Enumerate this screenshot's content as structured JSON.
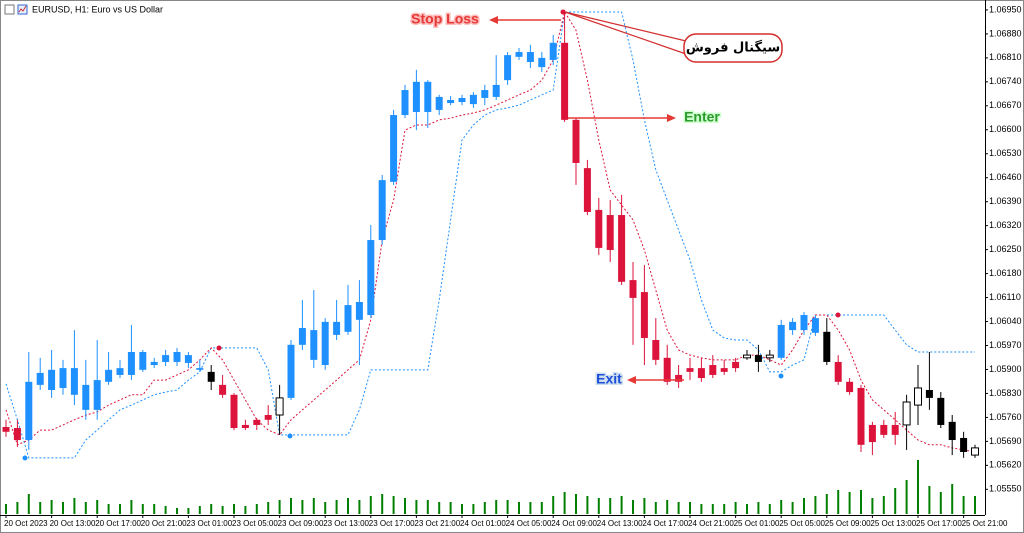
{
  "chart_data": {
    "type": "candlestick",
    "title": "EURUSD, H1: Euro vs US Dollar",
    "categories": [
      "20 Oct 2023",
      null,
      null,
      null,
      "20 Oct 13:00",
      null,
      null,
      null,
      "20 Oct 17:00",
      null,
      null,
      null,
      "20 Oct 21:00",
      null,
      null,
      null,
      "23 Oct 01:00",
      null,
      null,
      null,
      "23 Oct 05:00",
      null,
      null,
      null,
      "23 Oct 09:00",
      null,
      null,
      null,
      "23 Oct 13:00",
      null,
      null,
      null,
      "23 Oct 17:00",
      null,
      null,
      null,
      "23 Oct 21:00",
      null,
      null,
      null,
      "24 Oct 01:00",
      null,
      null,
      null,
      "24 Oct 05:00",
      null,
      null,
      null,
      "24 Oct 09:00",
      null,
      null,
      null,
      "24 Oct 13:00",
      null,
      null,
      null,
      "24 Oct 17:00",
      null,
      null,
      null,
      "24 Oct 21:00",
      null,
      null,
      null,
      "25 Oct 01:00",
      null,
      null,
      null,
      "25 Oct 05:00",
      null,
      null,
      null,
      "25 Oct 09:00",
      null,
      null,
      null,
      "25 Oct 13:00",
      null,
      null,
      null,
      "25 Oct 17:00",
      null,
      null,
      null,
      "25 Oct 21:00",
      null
    ],
    "open": [
      1.05732,
      1.05729,
      1.05694,
      1.05855,
      1.0584,
      1.05846,
      1.05826,
      1.05782,
      1.05782,
      1.05864,
      1.05884,
      1.05884,
      1.05899,
      1.05913,
      1.05922,
      1.05922,
      1.05919,
      1.05899,
      1.05893,
      1.05855,
      1.05826,
      1.05738,
      1.05753,
      1.05767,
      1.05767,
      1.05817,
      1.05972,
      1.05928,
      1.05913,
      1.06001,
      1.0601,
      1.06045,
      1.06059,
      1.06278,
      1.06448,
      1.06643,
      1.06652,
      1.06652,
      1.06658,
      1.06678,
      1.06681,
      1.06675,
      1.06693,
      1.06696,
      1.06745,
      1.06813,
      1.06798,
      1.06783,
      1.06804,
      1.06854,
      1.06629,
      1.06488,
      1.06366,
      1.06351,
      1.06351,
      1.06161,
      1.06126,
      1.05986,
      1.05934,
      1.05884,
      1.05904,
      1.05904,
      1.05913,
      1.05904,
      1.05922,
      1.05934,
      1.05942,
      1.05934,
      1.05934,
      1.06015,
      1.06015,
      1.06007,
      1.0601,
      1.05922,
      1.05864,
      1.05846,
      1.05738,
      1.05738,
      1.05738,
      1.05738,
      1.05796,
      1.0584,
      1.05817,
      1.05747,
      1.057,
      1.0565
    ],
    "high": [
      1.05753,
      1.05753,
      1.05951,
      1.05934,
      1.05957,
      1.05928,
      1.06015,
      1.05928,
      1.05986,
      1.05951,
      1.05928,
      1.0603,
      1.05957,
      1.05934,
      1.05957,
      1.05963,
      1.05951,
      1.05928,
      1.05913,
      1.05884,
      1.05831,
      1.05753,
      1.05758,
      1.05796,
      1.05855,
      1.05986,
      1.06103,
      1.06132,
      1.0605,
      1.06103,
      1.06147,
      1.06161,
      1.06322,
      1.06468,
      1.06658,
      1.06731,
      1.06775,
      1.06745,
      1.06702,
      1.06699,
      1.06702,
      1.0671,
      1.06731,
      1.06818,
      1.06827,
      1.06839,
      1.06848,
      1.06827,
      1.06877,
      1.0695,
      1.06634,
      1.06512,
      1.06401,
      1.06395,
      1.0641,
      1.06214,
      1.06205,
      1.0605,
      1.05972,
      1.05913,
      1.05934,
      1.05934,
      1.05942,
      1.05928,
      1.05934,
      1.05957,
      1.05972,
      1.05957,
      1.06045,
      1.0605,
      1.06068,
      1.06059,
      1.0605,
      1.05942,
      1.05875,
      1.05855,
      1.05747,
      1.05753,
      1.05776,
      1.05826,
      1.05913,
      1.05951,
      1.05834,
      1.05767,
      1.05718,
      1.0568
    ],
    "low": [
      1.05703,
      1.05674,
      1.05665,
      1.0584,
      1.05817,
      1.05826,
      1.05796,
      1.05753,
      1.05753,
      1.05855,
      1.05875,
      1.05869,
      1.05893,
      1.05904,
      1.0591,
      1.0591,
      1.05904,
      1.05893,
      1.0584,
      1.05817,
      1.05723,
      1.05723,
      1.05723,
      1.05738,
      1.05709,
      1.05811,
      1.05957,
      1.05904,
      1.05899,
      1.05986,
      1.06001,
      1.05913,
      1.0605,
      1.06264,
      1.06439,
      1.06634,
      1.06599,
      1.06605,
      1.06643,
      1.06672,
      1.06672,
      1.06664,
      1.06672,
      1.06687,
      1.06731,
      1.06804,
      1.0678,
      1.06769,
      1.06789,
      1.06623,
      1.06439,
      1.06351,
      1.06234,
      1.06214,
      1.06147,
      1.05972,
      1.05913,
      1.05913,
      1.05855,
      1.05846,
      1.05869,
      1.05864,
      1.05875,
      1.05884,
      1.05893,
      1.05928,
      1.05893,
      1.05922,
      1.05928,
      1.06001,
      1.06001,
      1.05998,
      1.05913,
      1.05855,
      1.05826,
      1.05659,
      1.0565,
      1.057,
      1.0568,
      1.05665,
      1.05738,
      1.05782,
      1.05729,
      1.0565,
      1.05642,
      1.05642
    ],
    "close": [
      1.05718,
      1.05694,
      1.05864,
      1.0589,
      1.05899,
      1.05904,
      1.05904,
      1.05855,
      1.05869,
      1.05899,
      1.05904,
      1.05951,
      1.05951,
      1.05922,
      1.05942,
      1.05951,
      1.05942,
      1.05904,
      1.05864,
      1.05826,
      1.05729,
      1.05729,
      1.05738,
      1.05753,
      1.05817,
      1.05972,
      1.06021,
      1.06015,
      1.06039,
      1.06039,
      1.06088,
      1.06097,
      1.06278,
      1.06453,
      1.06643,
      1.06716,
      1.0674,
      1.0674,
      1.06696,
      1.06687,
      1.06693,
      1.06702,
      1.06716,
      1.06731,
      1.06818,
      1.06827,
      1.06827,
      1.0681,
      1.06854,
      1.06629,
      1.06503,
      1.0636,
      1.06255,
      1.06249,
      1.06156,
      1.06109,
      1.05992,
      1.05928,
      1.05864,
      1.05864,
      1.05893,
      1.05875,
      1.05884,
      1.05893,
      1.05904,
      1.05942,
      1.05922,
      1.05942,
      1.0603,
      1.06039,
      1.06059,
      1.0605,
      1.05922,
      1.05864,
      1.05834,
      1.0568,
      1.05688,
      1.05709,
      1.05709,
      1.05805,
      1.05846,
      1.05817,
      1.05738,
      1.05694,
      1.05659,
      1.05671
    ],
    "colors": [
      "#dc143c",
      "#dc143c",
      "#1e90ff",
      "#1e90ff",
      "#1e90ff",
      "#1e90ff",
      "#1e90ff",
      "#1e90ff",
      "#1e90ff",
      "#1e90ff",
      "#1e90ff",
      "#1e90ff",
      "#1e90ff",
      "#1e90ff",
      "#1e90ff",
      "#1e90ff",
      "#1e90ff",
      "#1e90ff",
      "#000000",
      "#dc143c",
      "#dc143c",
      "#dc143c",
      "#dc143c",
      "#dc143c",
      "#ffffff",
      "#1e90ff",
      "#1e90ff",
      "#1e90ff",
      "#1e90ff",
      "#1e90ff",
      "#1e90ff",
      "#1e90ff",
      "#1e90ff",
      "#1e90ff",
      "#1e90ff",
      "#1e90ff",
      "#1e90ff",
      "#1e90ff",
      "#1e90ff",
      "#1e90ff",
      "#1e90ff",
      "#1e90ff",
      "#1e90ff",
      "#1e90ff",
      "#1e90ff",
      "#1e90ff",
      "#1e90ff",
      "#1e90ff",
      "#1e90ff",
      "#dc143c",
      "#dc143c",
      "#dc143c",
      "#dc143c",
      "#dc143c",
      "#dc143c",
      "#dc143c",
      "#dc143c",
      "#dc143c",
      "#dc143c",
      "#dc143c",
      "#dc143c",
      "#dc143c",
      "#dc143c",
      "#dc143c",
      "#dc143c",
      "#ffffff",
      "#000000",
      "#ffffff",
      "#1e90ff",
      "#1e90ff",
      "#1e90ff",
      "#1e90ff",
      "#000000",
      "#dc143c",
      "#dc143c",
      "#dc143c",
      "#dc143c",
      "#dc143c",
      "#dc143c",
      "#ffffff",
      "#ffffff",
      "#000000",
      "#000000",
      "#000000",
      "#000000",
      "#ffffff"
    ],
    "lines": [
      {
        "color": "#1e90ff",
        "values": [
          1.05858,
          1.05753,
          1.05642,
          1.05642,
          1.05642,
          1.05642,
          1.05642,
          1.05694,
          1.05723,
          1.05753,
          1.05782,
          1.05796,
          1.05811,
          1.05826,
          1.05834,
          1.0584,
          1.05869,
          1.05893,
          1.05963,
          1.05963,
          1.05963,
          1.05963,
          1.05963,
          1.05899,
          1.05709,
          1.05709,
          1.05709,
          1.05709,
          1.05709,
          1.05709,
          1.05709,
          1.05782,
          1.05899,
          1.05899,
          1.05899,
          1.05899,
          1.05899,
          1.05899,
          1.06103,
          1.06337,
          1.0657,
          1.06614,
          1.06643,
          1.06658,
          1.06664,
          1.06672,
          1.06687,
          1.06702,
          1.06716,
          1.06944,
          1.06944,
          1.06944,
          1.06944,
          1.06944,
          1.06944,
          1.06804,
          1.06629,
          1.06483,
          1.06395,
          1.06307,
          1.0622,
          1.06103,
          1.06015,
          1.05992,
          1.05986,
          1.05986,
          1.05957,
          1.05893,
          1.05893,
          1.05913,
          1.05928,
          1.06059,
          1.06059,
          1.06059,
          1.06059,
          1.06059,
          1.06059,
          1.06059,
          1.06015,
          1.05972,
          1.05951,
          1.05951,
          1.05951,
          1.05951,
          1.05951,
          1.05951
        ]
      },
      {
        "color": "#dc143c",
        "values": [
          1.05782,
          1.0568,
          1.05694,
          1.05723,
          1.05723,
          1.05738,
          1.05753,
          1.05767,
          1.05776,
          1.05796,
          1.05811,
          1.05826,
          1.05826,
          1.05869,
          1.05869,
          1.05884,
          1.05899,
          1.05928,
          1.05963,
          1.05928,
          1.05869,
          1.05811,
          1.05753,
          1.05723,
          1.05709,
          1.05753,
          1.05782,
          1.05811,
          1.0584,
          1.05869,
          1.05899,
          1.05928,
          1.06045,
          1.06278,
          1.06395,
          1.06599,
          1.06614,
          1.06614,
          1.06629,
          1.06634,
          1.06643,
          1.06649,
          1.06658,
          1.06672,
          1.06687,
          1.06702,
          1.06716,
          1.06745,
          1.06804,
          1.06944,
          1.06891,
          1.06745,
          1.0657,
          1.06424,
          1.0638,
          1.06337,
          1.06249,
          1.06132,
          1.06015,
          1.05957,
          1.05942,
          1.05934,
          1.05928,
          1.05928,
          1.05928,
          1.05942,
          1.05942,
          1.05928,
          1.05913,
          1.05957,
          1.06015,
          1.06059,
          1.06059,
          1.06015,
          1.05957,
          1.05869,
          1.05811,
          1.05782,
          1.05753,
          1.05723,
          1.05694,
          1.0568,
          1.0568,
          1.05671,
          1.05665,
          1.05659
        ]
      }
    ],
    "volume": {
      "color": "#008000",
      "values": [
        10,
        12,
        20,
        12,
        14,
        12,
        16,
        12,
        14,
        10,
        10,
        14,
        10,
        10,
        8,
        6,
        6,
        8,
        10,
        8,
        10,
        8,
        10,
        12,
        14,
        16,
        14,
        16,
        12,
        14,
        16,
        14,
        18,
        20,
        18,
        16,
        14,
        14,
        12,
        12,
        10,
        10,
        12,
        14,
        14,
        12,
        12,
        12,
        18,
        22,
        20,
        18,
        16,
        16,
        18,
        14,
        16,
        12,
        14,
        12,
        12,
        10,
        10,
        10,
        12,
        10,
        12,
        10,
        14,
        12,
        16,
        18,
        20,
        24,
        22,
        24,
        16,
        18,
        26,
        34,
        54,
        28,
        22,
        30,
        18,
        18
      ]
    },
    "ylim": [
      1.05475,
      1.06979
    ],
    "yticks": [
      {
        "value": 1.0695,
        "label": "1.06950"
      },
      {
        "value": 1.0688,
        "label": "1.06880"
      },
      {
        "value": 1.0681,
        "label": "1.06810"
      },
      {
        "value": 1.0674,
        "label": "1.06740"
      },
      {
        "value": 1.0667,
        "label": "1.06670"
      },
      {
        "value": 1.066,
        "label": "1.06600"
      },
      {
        "value": 1.0653,
        "label": "1.06530"
      },
      {
        "value": 1.0646,
        "label": "1.06460"
      },
      {
        "value": 1.0639,
        "label": "1.06390"
      },
      {
        "value": 1.0632,
        "label": "1.06320"
      },
      {
        "value": 1.0625,
        "label": "1.06250"
      },
      {
        "value": 1.0618,
        "label": "1.06180"
      },
      {
        "value": 1.0611,
        "label": "1.06110"
      },
      {
        "value": 1.0604,
        "label": "1.06040"
      },
      {
        "value": 1.0597,
        "label": "1.05970"
      },
      {
        "value": 1.059,
        "label": "1.05900"
      },
      {
        "value": 1.0583,
        "label": "1.05830"
      },
      {
        "value": 1.0576,
        "label": "1.05760"
      },
      {
        "value": 1.0569,
        "label": "1.05690"
      },
      {
        "value": 1.0562,
        "label": "1.05620"
      },
      {
        "value": 1.0555,
        "label": "1.05550"
      }
    ],
    "grid": false,
    "annotations": [
      {
        "text": "Stop Loss"
      },
      {
        "text": "سیگنال فروش"
      },
      {
        "text": "Enter"
      },
      {
        "text": "Exit"
      }
    ]
  }
}
